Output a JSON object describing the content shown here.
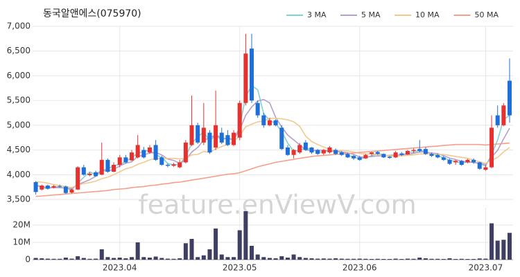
{
  "chart_data": {
    "type": "candlestick",
    "title": "동국알앤에스(075970)",
    "watermark": "feature.enViewV.com",
    "categories": [
      null,
      null,
      null,
      null,
      null,
      null,
      null,
      null,
      null,
      null,
      null,
      null,
      null,
      null,
      "2023.04",
      null,
      null,
      null,
      null,
      null,
      null,
      null,
      null,
      null,
      null,
      null,
      null,
      null,
      null,
      null,
      null,
      null,
      null,
      null,
      "2023.05",
      null,
      null,
      null,
      null,
      null,
      null,
      null,
      null,
      null,
      null,
      null,
      null,
      null,
      null,
      null,
      null,
      null,
      null,
      null,
      "2023.06",
      null,
      null,
      null,
      null,
      null,
      null,
      null,
      null,
      null,
      null,
      null,
      null,
      null,
      null,
      null,
      null,
      null,
      null,
      null,
      null,
      "2023.07",
      null,
      null,
      null,
      null
    ],
    "open": [
      3850,
      3700,
      3780,
      3740,
      3770,
      3760,
      3640,
      3700,
      4150,
      3990,
      4050,
      4000,
      4300,
      4060,
      4200,
      4350,
      4290,
      4350,
      4500,
      4450,
      4600,
      4350,
      4200,
      4180,
      4150,
      4250,
      4600,
      5000,
      4650,
      4850,
      4550,
      4850,
      4800,
      4600,
      4750,
      5450,
      6550,
      5450,
      5200,
      5000,
      5100,
      4950,
      4550,
      4400,
      4450,
      4650,
      4550,
      4500,
      4430,
      4450,
      4500,
      4450,
      4420,
      4380,
      4350,
      4330,
      4420,
      4460,
      4420,
      4360,
      4350,
      4430,
      4410,
      4480,
      4520,
      4520,
      4420,
      4400,
      4350,
      4300,
      4250,
      4280,
      4250,
      4300,
      4250,
      4100,
      4150,
      5200,
      5000,
      5900
    ],
    "high": [
      3870,
      3800,
      3800,
      3790,
      3800,
      3780,
      3720,
      4170,
      4200,
      4050,
      4080,
      4650,
      4330,
      4250,
      4400,
      4400,
      4500,
      4800,
      4560,
      4600,
      4700,
      4380,
      4230,
      4240,
      4300,
      4700,
      5600,
      5050,
      5450,
      4900,
      5700,
      4950,
      4900,
      4900,
      5500,
      6850,
      6850,
      5500,
      5250,
      5150,
      5120,
      5000,
      4600,
      4520,
      4640,
      4700,
      4560,
      4520,
      4520,
      4580,
      4530,
      4480,
      4440,
      4400,
      4380,
      4420,
      4460,
      4480,
      4430,
      4380,
      4480,
      4460,
      4500,
      4530,
      4700,
      4560,
      4450,
      4420,
      4380,
      4320,
      4300,
      4300,
      4320,
      4330,
      4260,
      4200,
      5200,
      5400,
      5450,
      6350
    ],
    "low": [
      3600,
      3680,
      3700,
      3720,
      3740,
      3610,
      3620,
      3690,
      3980,
      3970,
      3960,
      3990,
      4040,
      4050,
      4150,
      4230,
      4280,
      4330,
      4330,
      4420,
      4280,
      4180,
      4150,
      4160,
      4130,
      4230,
      4580,
      4620,
      4600,
      4420,
      4500,
      4620,
      4580,
      4580,
      4700,
      5400,
      5450,
      5150,
      4950,
      4980,
      4980,
      4500,
      4380,
      4330,
      4420,
      4480,
      4420,
      4400,
      4400,
      4430,
      4400,
      4380,
      4340,
      4300,
      4280,
      4320,
      4380,
      4400,
      4340,
      4320,
      4340,
      4380,
      4400,
      4440,
      4450,
      4400,
      4360,
      4330,
      4280,
      4200,
      4200,
      4180,
      4230,
      4220,
      4100,
      4080,
      4130,
      4950,
      4980,
      5050
    ],
    "close": [
      3650,
      3780,
      3720,
      3770,
      3760,
      3630,
      3700,
      4150,
      4000,
      4020,
      3970,
      4300,
      4060,
      4200,
      4350,
      4250,
      4450,
      4600,
      4350,
      4550,
      4300,
      4200,
      4180,
      4210,
      4250,
      4650,
      5000,
      4650,
      4950,
      4450,
      5000,
      4650,
      4600,
      4850,
      5450,
      6450,
      5500,
      5200,
      5000,
      5100,
      5000,
      4520,
      4400,
      4500,
      4600,
      4500,
      4450,
      4420,
      4500,
      4550,
      4420,
      4400,
      4350,
      4330,
      4300,
      4400,
      4450,
      4420,
      4350,
      4340,
      4450,
      4400,
      4480,
      4500,
      4480,
      4420,
      4380,
      4350,
      4300,
      4220,
      4280,
      4200,
      4300,
      4250,
      4120,
      4150,
      4950,
      5000,
      5400,
      5200
    ],
    "up_color": "#e8312f",
    "down_color": "#1e6fd9",
    "ylim": [
      3500,
      7000
    ],
    "yticks": [
      {
        "value": 3500,
        "label": "3,500"
      },
      {
        "value": 4000,
        "label": "4,000"
      },
      {
        "value": 4500,
        "label": "4,500"
      },
      {
        "value": 5000,
        "label": "5,000"
      },
      {
        "value": 5500,
        "label": "5,500"
      },
      {
        "value": 6000,
        "label": "6,000"
      },
      {
        "value": 6500,
        "label": "6,500"
      },
      {
        "value": 7000,
        "label": "7,000"
      }
    ],
    "grid": true,
    "legend": "top-right",
    "series": [
      {
        "name": "3 MA",
        "color": "#7fd3d0",
        "values": [
          3800,
          3740,
          3717,
          3757,
          3750,
          3720,
          3697,
          3827,
          3950,
          4057,
          3997,
          4097,
          4110,
          4187,
          4203,
          4267,
          4350,
          4433,
          4467,
          4500,
          4400,
          4350,
          4227,
          4197,
          4213,
          4370,
          4633,
          4767,
          4867,
          4683,
          4800,
          4700,
          4750,
          4700,
          4967,
          5583,
          5800,
          5717,
          5233,
          5100,
          5033,
          4873,
          4640,
          4473,
          4500,
          4533,
          4517,
          4457,
          4457,
          4490,
          4490,
          4457,
          4390,
          4360,
          4327,
          4343,
          4383,
          4423,
          4407,
          4370,
          4380,
          4397,
          4443,
          4460,
          4493,
          4467,
          4427,
          4383,
          4343,
          4290,
          4267,
          4233,
          4260,
          4250,
          4223,
          4173,
          4407,
          4700,
          5117,
          5200
        ]
      },
      {
        "name": "5 MA",
        "color": "#b59fcb",
        "values": [
          3780,
          3760,
          3740,
          3740,
          3736,
          3732,
          3716,
          3802,
          3848,
          3900,
          3968,
          4088,
          4070,
          4110,
          4176,
          4232,
          4262,
          4370,
          4400,
          4440,
          4450,
          4400,
          4316,
          4288,
          4228,
          4298,
          4458,
          4552,
          4700,
          4740,
          4810,
          4740,
          4730,
          4710,
          4910,
          5200,
          5370,
          5490,
          5520,
          5450,
          5160,
          4964,
          4804,
          4704,
          4604,
          4504,
          4490,
          4494,
          4494,
          4484,
          4468,
          4458,
          4444,
          4410,
          4360,
          4356,
          4366,
          4380,
          4384,
          4392,
          4402,
          4392,
          4404,
          4434,
          4462,
          4460,
          4436,
          4426,
          4386,
          4334,
          4306,
          4270,
          4260,
          4250,
          4230,
          4204,
          4354,
          4494,
          4724,
          4940
        ]
      },
      {
        "name": "10 MA",
        "color": "#f2c98e",
        "values": [
          3860,
          3850,
          3830,
          3800,
          3780,
          3760,
          3740,
          3790,
          3820,
          3840,
          3870,
          3920,
          3950,
          4000,
          4060,
          4120,
          4150,
          4210,
          4250,
          4300,
          4330,
          4320,
          4330,
          4330,
          4320,
          4330,
          4400,
          4410,
          4470,
          4450,
          4520,
          4570,
          4610,
          4670,
          4790,
          4970,
          5020,
          5070,
          5080,
          5140,
          5140,
          5130,
          5110,
          5070,
          4980,
          4780,
          4670,
          4610,
          4560,
          4510,
          4490,
          4490,
          4480,
          4460,
          4430,
          4420,
          4420,
          4410,
          4400,
          4380,
          4380,
          4380,
          4390,
          4400,
          4420,
          4420,
          4420,
          4410,
          4410,
          4390,
          4370,
          4350,
          4330,
          4300,
          4260,
          4230,
          4290,
          4350,
          4460,
          4550
        ]
      },
      {
        "name": "50 MA",
        "color": "#f4a08a",
        "values": [
          3560,
          3570,
          3580,
          3590,
          3600,
          3610,
          3620,
          3630,
          3640,
          3650,
          3660,
          3670,
          3680,
          3700,
          3710,
          3720,
          3740,
          3750,
          3760,
          3780,
          3790,
          3810,
          3820,
          3840,
          3850,
          3870,
          3890,
          3910,
          3930,
          3950,
          3970,
          3990,
          4010,
          4020,
          4040,
          4080,
          4120,
          4160,
          4190,
          4220,
          4250,
          4270,
          4290,
          4310,
          4330,
          4350,
          4370,
          4380,
          4390,
          4400,
          4410,
          4420,
          4430,
          4440,
          4450,
          4460,
          4470,
          4480,
          4490,
          4500,
          4510,
          4520,
          4530,
          4540,
          4550,
          4560,
          4570,
          4580,
          4590,
          4600,
          4610,
          4610,
          4610,
          4610,
          4610,
          4600,
          4610,
          4620,
          4630,
          4640
        ]
      }
    ],
    "volume": {
      "color": "#3f3f63",
      "ylim": [
        0,
        30000000
      ],
      "yticks": [
        0,
        {
          "value": 10000000,
          "label": "10M"
        },
        {
          "value": 20000000,
          "label": "20M"
        }
      ],
      "values": [
        1000000,
        800000,
        600000,
        500000,
        500000,
        1200000,
        600000,
        2000000,
        1000000,
        500000,
        600000,
        6000000,
        1500000,
        1000000,
        1200000,
        800000,
        1500000,
        10000000,
        1500000,
        1200000,
        1800000,
        1000000,
        600000,
        500000,
        800000,
        9500000,
        12000000,
        1500000,
        2500000,
        6000000,
        18000000,
        3000000,
        1500000,
        1500000,
        17000000,
        28000000,
        8000000,
        3000000,
        1500000,
        1000000,
        800000,
        2000000,
        1200000,
        3000000,
        1500000,
        1000000,
        800000,
        600000,
        700000,
        600000,
        800000,
        600000,
        500000,
        500000,
        600000,
        500000,
        400000,
        500000,
        400000,
        400000,
        600000,
        400000,
        600000,
        500000,
        1200000,
        800000,
        500000,
        500000,
        400000,
        800000,
        400000,
        500000,
        400000,
        400000,
        700000,
        600000,
        21000000,
        11000000,
        11500000,
        15500000
      ]
    }
  }
}
